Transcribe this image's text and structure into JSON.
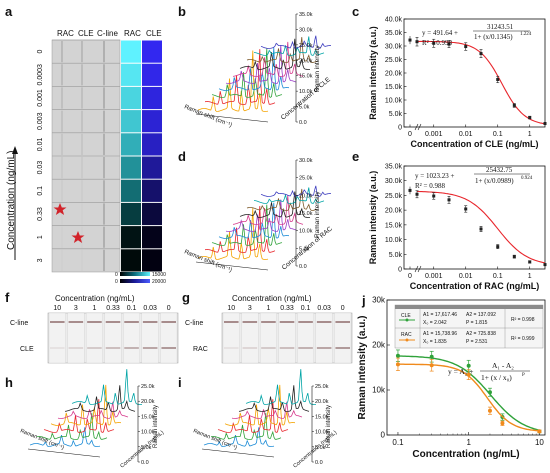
{
  "panels": {
    "a": {
      "letter": "a",
      "strip_headers": [
        "RAC",
        "CLE",
        "C-line"
      ],
      "map_headers": [
        "RAC",
        "CLE"
      ],
      "ylabel": "Concentration (ng/mL)",
      "rows": [
        "0",
        "0.0003",
        "0.001",
        "0.003",
        "0.01",
        "0.03",
        "0.1",
        "0.33",
        "1",
        "3"
      ],
      "cbar1": {
        "min": "0",
        "max": "15000"
      },
      "cbar2": {
        "min": "0",
        "max": "20000"
      }
    },
    "b": {
      "letter": "b",
      "zlabel": "Raman intensity",
      "ylabel": "Concentration of CLE",
      "xlabel": "Raman shift (cm⁻¹)",
      "zticks": [
        "35.0k",
        "30.0k",
        "25.0k",
        "20.0k",
        "15.0k",
        "10.0k",
        "5.0k",
        "0.0"
      ],
      "xticks": [
        "1800",
        "1600",
        "1400",
        "1200",
        "1000",
        "800"
      ]
    },
    "d": {
      "letter": "d",
      "zlabel": "Raman intensity",
      "ylabel": "Concentration of RAC",
      "xlabel": "Raman shift (cm⁻¹)",
      "zticks": [
        "30.0k",
        "25.0k",
        "20.0k",
        "15.0k",
        "10.0k",
        "5.0k",
        "0.0"
      ],
      "xticks": [
        "1800",
        "1600",
        "1400",
        "1200",
        "1000",
        "800"
      ]
    },
    "f": {
      "letter": "f",
      "title": "Concentration (ng/mL)",
      "concs": [
        "10",
        "3",
        "1",
        "0.33",
        "0.1",
        "0.03",
        "0"
      ],
      "label_top": "C-line",
      "label_bottom": "CLE"
    },
    "g": {
      "letter": "g",
      "title": "Concentration (ng/mL)",
      "concs": [
        "10",
        "3",
        "1",
        "0.33",
        "0.1",
        "0.03",
        "0"
      ],
      "label_top": "C-line",
      "label_bottom": "RAC"
    },
    "h": {
      "letter": "h",
      "zlabel": "Raman intensity",
      "ylabel": "Concentration (ng/mL)",
      "xlabel": "Raman shift (cm⁻¹)",
      "zticks": [
        "25.0k",
        "20.0k",
        "15.0k",
        "10.0k",
        "5.0k",
        "0.0"
      ]
    },
    "i": {
      "letter": "i",
      "zlabel": "Raman intensity",
      "ylabel": "Concentration (ng/mL)",
      "xlabel": "Raman shift (cm⁻¹)",
      "zticks": [
        "25.0k",
        "20.0k",
        "15.0k",
        "10.0k",
        "5.0k",
        "0.0"
      ]
    },
    "c": {
      "letter": "c",
      "eq_a": "y = 491.64 +",
      "eq_num": "31243.51",
      "eq_den": "1+ (x/0.1345)",
      "eq_exp": "1.224",
      "r2": "R² = 0.998"
    },
    "e": {
      "letter": "e",
      "eq_a": "y = 1023.23 +",
      "eq_num": "25432.75",
      "eq_den": "1+ (x/0.0989)",
      "eq_exp": "0.924",
      "r2": "R² = 0.988"
    },
    "j": {
      "letter": "j",
      "table": {
        "cle_name": "CLE",
        "cle_a1": "A1 = 17,617.46",
        "cle_a2": "A2 = 137.092",
        "cle_x0": "X₀ = 2.042",
        "cle_p": "P = 1.815",
        "cle_r2": "R² = 0.998",
        "rac_name": "RAC",
        "rac_a1": "A1 = 15,738.96",
        "rac_a2": "A2 = 725.838",
        "rac_x0": "X₀ = 1.835",
        "rac_p": "P = 2.531",
        "rac_r2": "R² = 0.999"
      },
      "eq_a": "y = A₂ +",
      "eq_num": "A₁ - A₂",
      "eq_den": "1+ (x / x₀)",
      "eq_exp": "P"
    }
  },
  "chart_data": [
    {
      "panel": "c",
      "type": "scatter",
      "xlabel": "Concentration of CLE (ng/mL)",
      "ylabel": "Raman intensity (a.u.)",
      "xscale": "log",
      "xticks": [
        "0",
        "0.001",
        "0.01",
        "0.1",
        "1"
      ],
      "ylim": [
        0,
        40000
      ],
      "yticks": [
        "0",
        "5.0k",
        "10.0k",
        "15.0k",
        "20.0k",
        "25.0k",
        "30.0k",
        "35.0k",
        "40.0k"
      ],
      "colors": {
        "fit": "#e8262c",
        "points": "#222222"
      },
      "series": [
        {
          "x": [
            0.0003,
            0.001,
            0.003,
            0.01,
            0.03,
            0.1,
            0.33,
            1,
            3
          ],
          "y": [
            31600,
            31000,
            30700,
            29800,
            27200,
            17600,
            8000,
            3500,
            1300
          ],
          "err": [
            1600,
            1500,
            1300,
            1400,
            1500,
            1200,
            700,
            500,
            300
          ]
        }
      ],
      "fit": {
        "A": 491.64,
        "B": 31243.51,
        "x0": 0.1345,
        "p": 1.224
      },
      "zero_point": {
        "y": 32200,
        "err": 1500
      }
    },
    {
      "panel": "e",
      "type": "scatter",
      "xlabel": "Concentration of RAC (ng/mL)",
      "ylabel": "Raman intensity (a.u.)",
      "xscale": "log",
      "xticks": [
        "0",
        "0.001",
        "0.01",
        "0.1",
        "1"
      ],
      "ylim": [
        0,
        35000
      ],
      "yticks": [
        "0",
        "5.0k",
        "10.0k",
        "15.0k",
        "20.0k",
        "25.0k",
        "30.0k",
        "35.0k"
      ],
      "colors": {
        "fit": "#e8262c",
        "points": "#222222"
      },
      "series": [
        {
          "x": [
            0.0003,
            0.001,
            0.003,
            0.01,
            0.03,
            0.1,
            0.33,
            1,
            3
          ],
          "y": [
            25400,
            24800,
            23500,
            20400,
            13600,
            7600,
            4200,
            2400,
            1500
          ],
          "err": [
            1200,
            1100,
            1200,
            1100,
            900,
            700,
            500,
            400,
            300
          ]
        }
      ],
      "fit": {
        "A": 1023.23,
        "B": 25432.75,
        "x0": 0.0989,
        "p": 0.924
      },
      "zero_point": {
        "y": 26700,
        "err": 1300
      }
    },
    {
      "panel": "j",
      "type": "line",
      "xlabel": "Concentration (ng/mL)",
      "ylabel": "Raman intensity (a.u.)",
      "xscale": "log",
      "xticks": [
        "0.1",
        "1",
        "10"
      ],
      "ylim": [
        0,
        30000
      ],
      "yticks": [
        "0",
        "10k",
        "20k",
        "30k"
      ],
      "series": [
        {
          "name": "CLE",
          "color": "#2fa23a",
          "x": [
            0.1,
            0.3,
            1,
            2,
            3,
            10
          ],
          "y": [
            17600,
            17400,
            15400,
            9500,
            4000,
            800
          ],
          "err": [
            1300,
            1200,
            1200,
            900,
            700,
            300
          ],
          "fit": {
            "A1": 17617.46,
            "A2": 137.092,
            "x0": 2.042,
            "p": 1.815
          }
        },
        {
          "name": "RAC",
          "color": "#f08a1c",
          "x": [
            0.1,
            0.3,
            1,
            2,
            3,
            10
          ],
          "y": [
            15700,
            15500,
            13400,
            5400,
            2600,
            800
          ],
          "err": [
            1400,
            1300,
            1100,
            800,
            500,
            300
          ],
          "fit": {
            "A1": 15738.96,
            "A2": 725.838,
            "x0": 1.835,
            "p": 2.531
          }
        }
      ]
    }
  ]
}
